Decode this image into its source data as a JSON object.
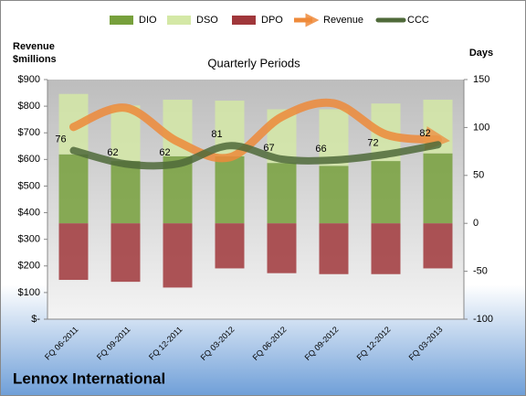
{
  "chart_data": {
    "type": "combo",
    "title": "Quarterly Periods",
    "subtitle": "Lennox International",
    "y_label": "Revenue $millions",
    "y2_label": "Days",
    "legend": "top",
    "grid": false,
    "categories": [
      "FQ 06-2011",
      "FQ 09-2011",
      "FQ 12-2011",
      "FQ 03-2012",
      "FQ 06-2012",
      "FQ 09-2012",
      "FQ 12-2012",
      "FQ 03-2013"
    ],
    "series": [
      {
        "name": "DIO",
        "type": "bar",
        "axis": "y2",
        "color": "#77a03c",
        "values": [
          72,
          65,
          70,
          70,
          63,
          60,
          65,
          73
        ]
      },
      {
        "name": "DSO",
        "type": "bar",
        "axis": "y2",
        "color": "#d4e8a6",
        "values": [
          63,
          58,
          59,
          58,
          56,
          59,
          60,
          56
        ]
      },
      {
        "name": "DPO",
        "type": "bar",
        "axis": "y2",
        "color": "#a0373b",
        "values": [
          -59,
          -61,
          -67,
          -47,
          -52,
          -53,
          -53,
          -47
        ]
      },
      {
        "name": "Revenue",
        "type": "line",
        "axis": "y",
        "color": "#ee8a3a",
        "values": [
          722,
          794,
          667,
          608,
          760,
          811,
          694,
          674
        ]
      },
      {
        "name": "CCC",
        "type": "line",
        "axis": "y2",
        "color": "#4f6a3a",
        "values": [
          76,
          62,
          62,
          81,
          67,
          66,
          72,
          82
        ]
      }
    ],
    "ylim": [
      0,
      900
    ],
    "yticks": [
      {
        "value": 0,
        "label": "$-"
      },
      {
        "value": 100,
        "label": "$100"
      },
      {
        "value": 200,
        "label": "$200"
      },
      {
        "value": 300,
        "label": "$300"
      },
      {
        "value": 400,
        "label": "$400"
      },
      {
        "value": 500,
        "label": "$500"
      },
      {
        "value": 600,
        "label": "$600"
      },
      {
        "value": 700,
        "label": "$700"
      },
      {
        "value": 800,
        "label": "$800"
      },
      {
        "value": 900,
        "label": "$900"
      }
    ],
    "y2lim": [
      -100,
      150
    ],
    "y2ticks": [
      -100,
      -50,
      0,
      50,
      100,
      150
    ]
  }
}
